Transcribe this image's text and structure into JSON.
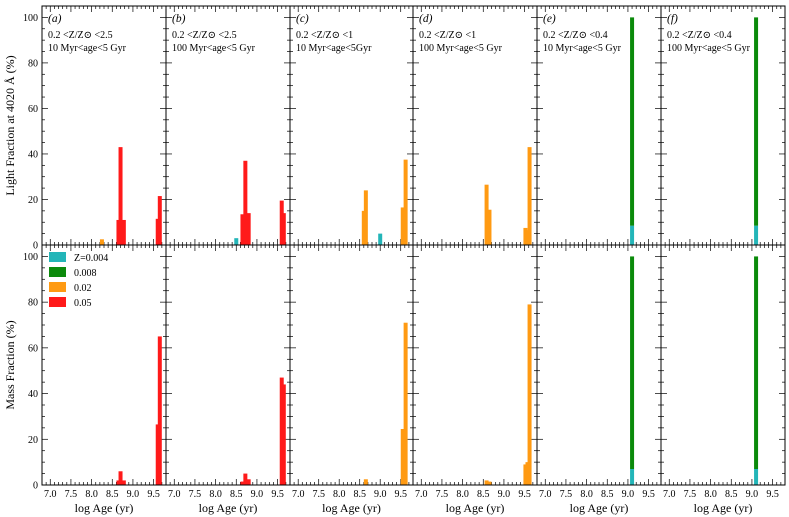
{
  "chart_data": {
    "type": "bar",
    "layout": "2 rows x 6 columns, shared axes",
    "xlabel": "log Age (yr)",
    "xlim": [
      6.8,
      9.8
    ],
    "xticks": [
      "7.0",
      "7.5",
      "8.0",
      "8.5",
      "9.0",
      "9.5"
    ],
    "ylim": [
      0,
      105
    ],
    "yticks": [
      "0",
      "20",
      "40",
      "60",
      "80",
      "100"
    ],
    "row_labels": [
      "Light Fraction at 4020 Å (%)",
      "Mass Fraction (%)"
    ],
    "legend": {
      "location": "upper-left of bottom-left panel",
      "entries": [
        {
          "label": "Z=0.004",
          "color": "#23b5b8"
        },
        {
          "label": "0.008",
          "color": "#0b8a0b"
        },
        {
          "label": "0.02",
          "color": "#ff9a12"
        },
        {
          "label": "0.05",
          "color": "#ff1a1a"
        }
      ]
    },
    "series_colors": {
      "0.004": "#23b5b8",
      "0.008": "#0b8a0b",
      "0.02": "#ff9a12",
      "0.05": "#ff1a1a"
    },
    "panels": [
      {
        "tag": "(a)",
        "zrange": "0.2 <Z/Z⊙ <2.5",
        "agerange": "10 Myr<age<5 Gyr",
        "light": [
          {
            "age": 8.25,
            "z": "0.02",
            "v": 2.5
          },
          {
            "age": 8.65,
            "z": "0.05",
            "v": 11
          },
          {
            "age": 8.7,
            "z": "0.05",
            "v": 43
          },
          {
            "age": 8.78,
            "z": "0.05",
            "v": 11
          },
          {
            "age": 9.6,
            "z": "0.05",
            "v": 11.5
          },
          {
            "age": 9.65,
            "z": "0.05",
            "v": 21.5
          }
        ],
        "mass": [
          {
            "age": 8.65,
            "z": "0.05",
            "v": 2
          },
          {
            "age": 8.7,
            "z": "0.05",
            "v": 6
          },
          {
            "age": 8.78,
            "z": "0.05",
            "v": 2
          },
          {
            "age": 9.6,
            "z": "0.05",
            "v": 26.5
          },
          {
            "age": 9.65,
            "z": "0.05",
            "v": 65
          }
        ]
      },
      {
        "tag": "(b)",
        "zrange": "0.2 <Z/Z⊙ <2.5",
        "agerange": "100 Myr<age<5 Gyr",
        "light": [
          {
            "age": 8.5,
            "z": "0.004",
            "v": 3
          },
          {
            "age": 8.65,
            "z": "0.05",
            "v": 13.5
          },
          {
            "age": 8.72,
            "z": "0.05",
            "v": 37
          },
          {
            "age": 8.8,
            "z": "0.05",
            "v": 14
          },
          {
            "age": 9.6,
            "z": "0.05",
            "v": 19.5
          },
          {
            "age": 9.65,
            "z": "0.05",
            "v": 14
          }
        ],
        "mass": [
          {
            "age": 8.65,
            "z": "0.05",
            "v": 1.5
          },
          {
            "age": 8.72,
            "z": "0.05",
            "v": 5
          },
          {
            "age": 8.8,
            "z": "0.05",
            "v": 2.5
          },
          {
            "age": 9.6,
            "z": "0.05",
            "v": 47
          },
          {
            "age": 9.65,
            "z": "0.05",
            "v": 44
          }
        ]
      },
      {
        "tag": "(c)",
        "zrange": "0.2 <Z/Z⊙ <1",
        "agerange": "10 Myr<age<5Gyr",
        "light": [
          {
            "age": 8.6,
            "z": "0.02",
            "v": 15
          },
          {
            "age": 8.65,
            "z": "0.02",
            "v": 24
          },
          {
            "age": 9.0,
            "z": "0.004",
            "v": 5
          },
          {
            "age": 9.55,
            "z": "0.02",
            "v": 16.5
          },
          {
            "age": 9.62,
            "z": "0.02",
            "v": 37.5
          }
        ],
        "mass": [
          {
            "age": 8.65,
            "z": "0.02",
            "v": 2.5
          },
          {
            "age": 9.55,
            "z": "0.02",
            "v": 24.5
          },
          {
            "age": 9.62,
            "z": "0.02",
            "v": 71
          }
        ]
      },
      {
        "tag": "(d)",
        "zrange": "0.2 <Z/Z⊙ <1",
        "agerange": "100 Myr<age<5 Gyr",
        "light": [
          {
            "age": 8.58,
            "z": "0.02",
            "v": 26.5
          },
          {
            "age": 8.65,
            "z": "0.02",
            "v": 15.5
          },
          {
            "age": 9.52,
            "z": "0.02",
            "v": 7.5
          },
          {
            "age": 9.57,
            "z": "0.02",
            "v": 6.5
          },
          {
            "age": 9.62,
            "z": "0.02",
            "v": 43
          }
        ],
        "mass": [
          {
            "age": 8.58,
            "z": "0.02",
            "v": 2
          },
          {
            "age": 8.65,
            "z": "0.02",
            "v": 1.5
          },
          {
            "age": 9.52,
            "z": "0.02",
            "v": 9
          },
          {
            "age": 9.57,
            "z": "0.02",
            "v": 10
          },
          {
            "age": 9.62,
            "z": "0.02",
            "v": 79
          }
        ]
      },
      {
        "tag": "(e)",
        "zrange": "0.2 <Z/Z⊙ <0.4",
        "agerange": "10 Myr<age<5 Gyr",
        "light": [
          {
            "age": 9.1,
            "stack": [
              {
                "z": "0.004",
                "v": 8.5
              },
              {
                "z": "0.008",
                "v": 91.5
              }
            ]
          }
        ],
        "mass": [
          {
            "age": 9.1,
            "stack": [
              {
                "z": "0.004",
                "v": 7
              },
              {
                "z": "0.008",
                "v": 93
              }
            ]
          }
        ]
      },
      {
        "tag": "(f)",
        "zrange": "0.2 <Z/Z⊙ <0.4",
        "agerange": "100 Myr<age<5 Gyr",
        "light": [
          {
            "age": 9.1,
            "stack": [
              {
                "z": "0.004",
                "v": 8.5
              },
              {
                "z": "0.008",
                "v": 91.5
              }
            ]
          }
        ],
        "mass": [
          {
            "age": 9.1,
            "stack": [
              {
                "z": "0.004",
                "v": 7
              },
              {
                "z": "0.008",
                "v": 93
              }
            ]
          }
        ]
      }
    ]
  }
}
